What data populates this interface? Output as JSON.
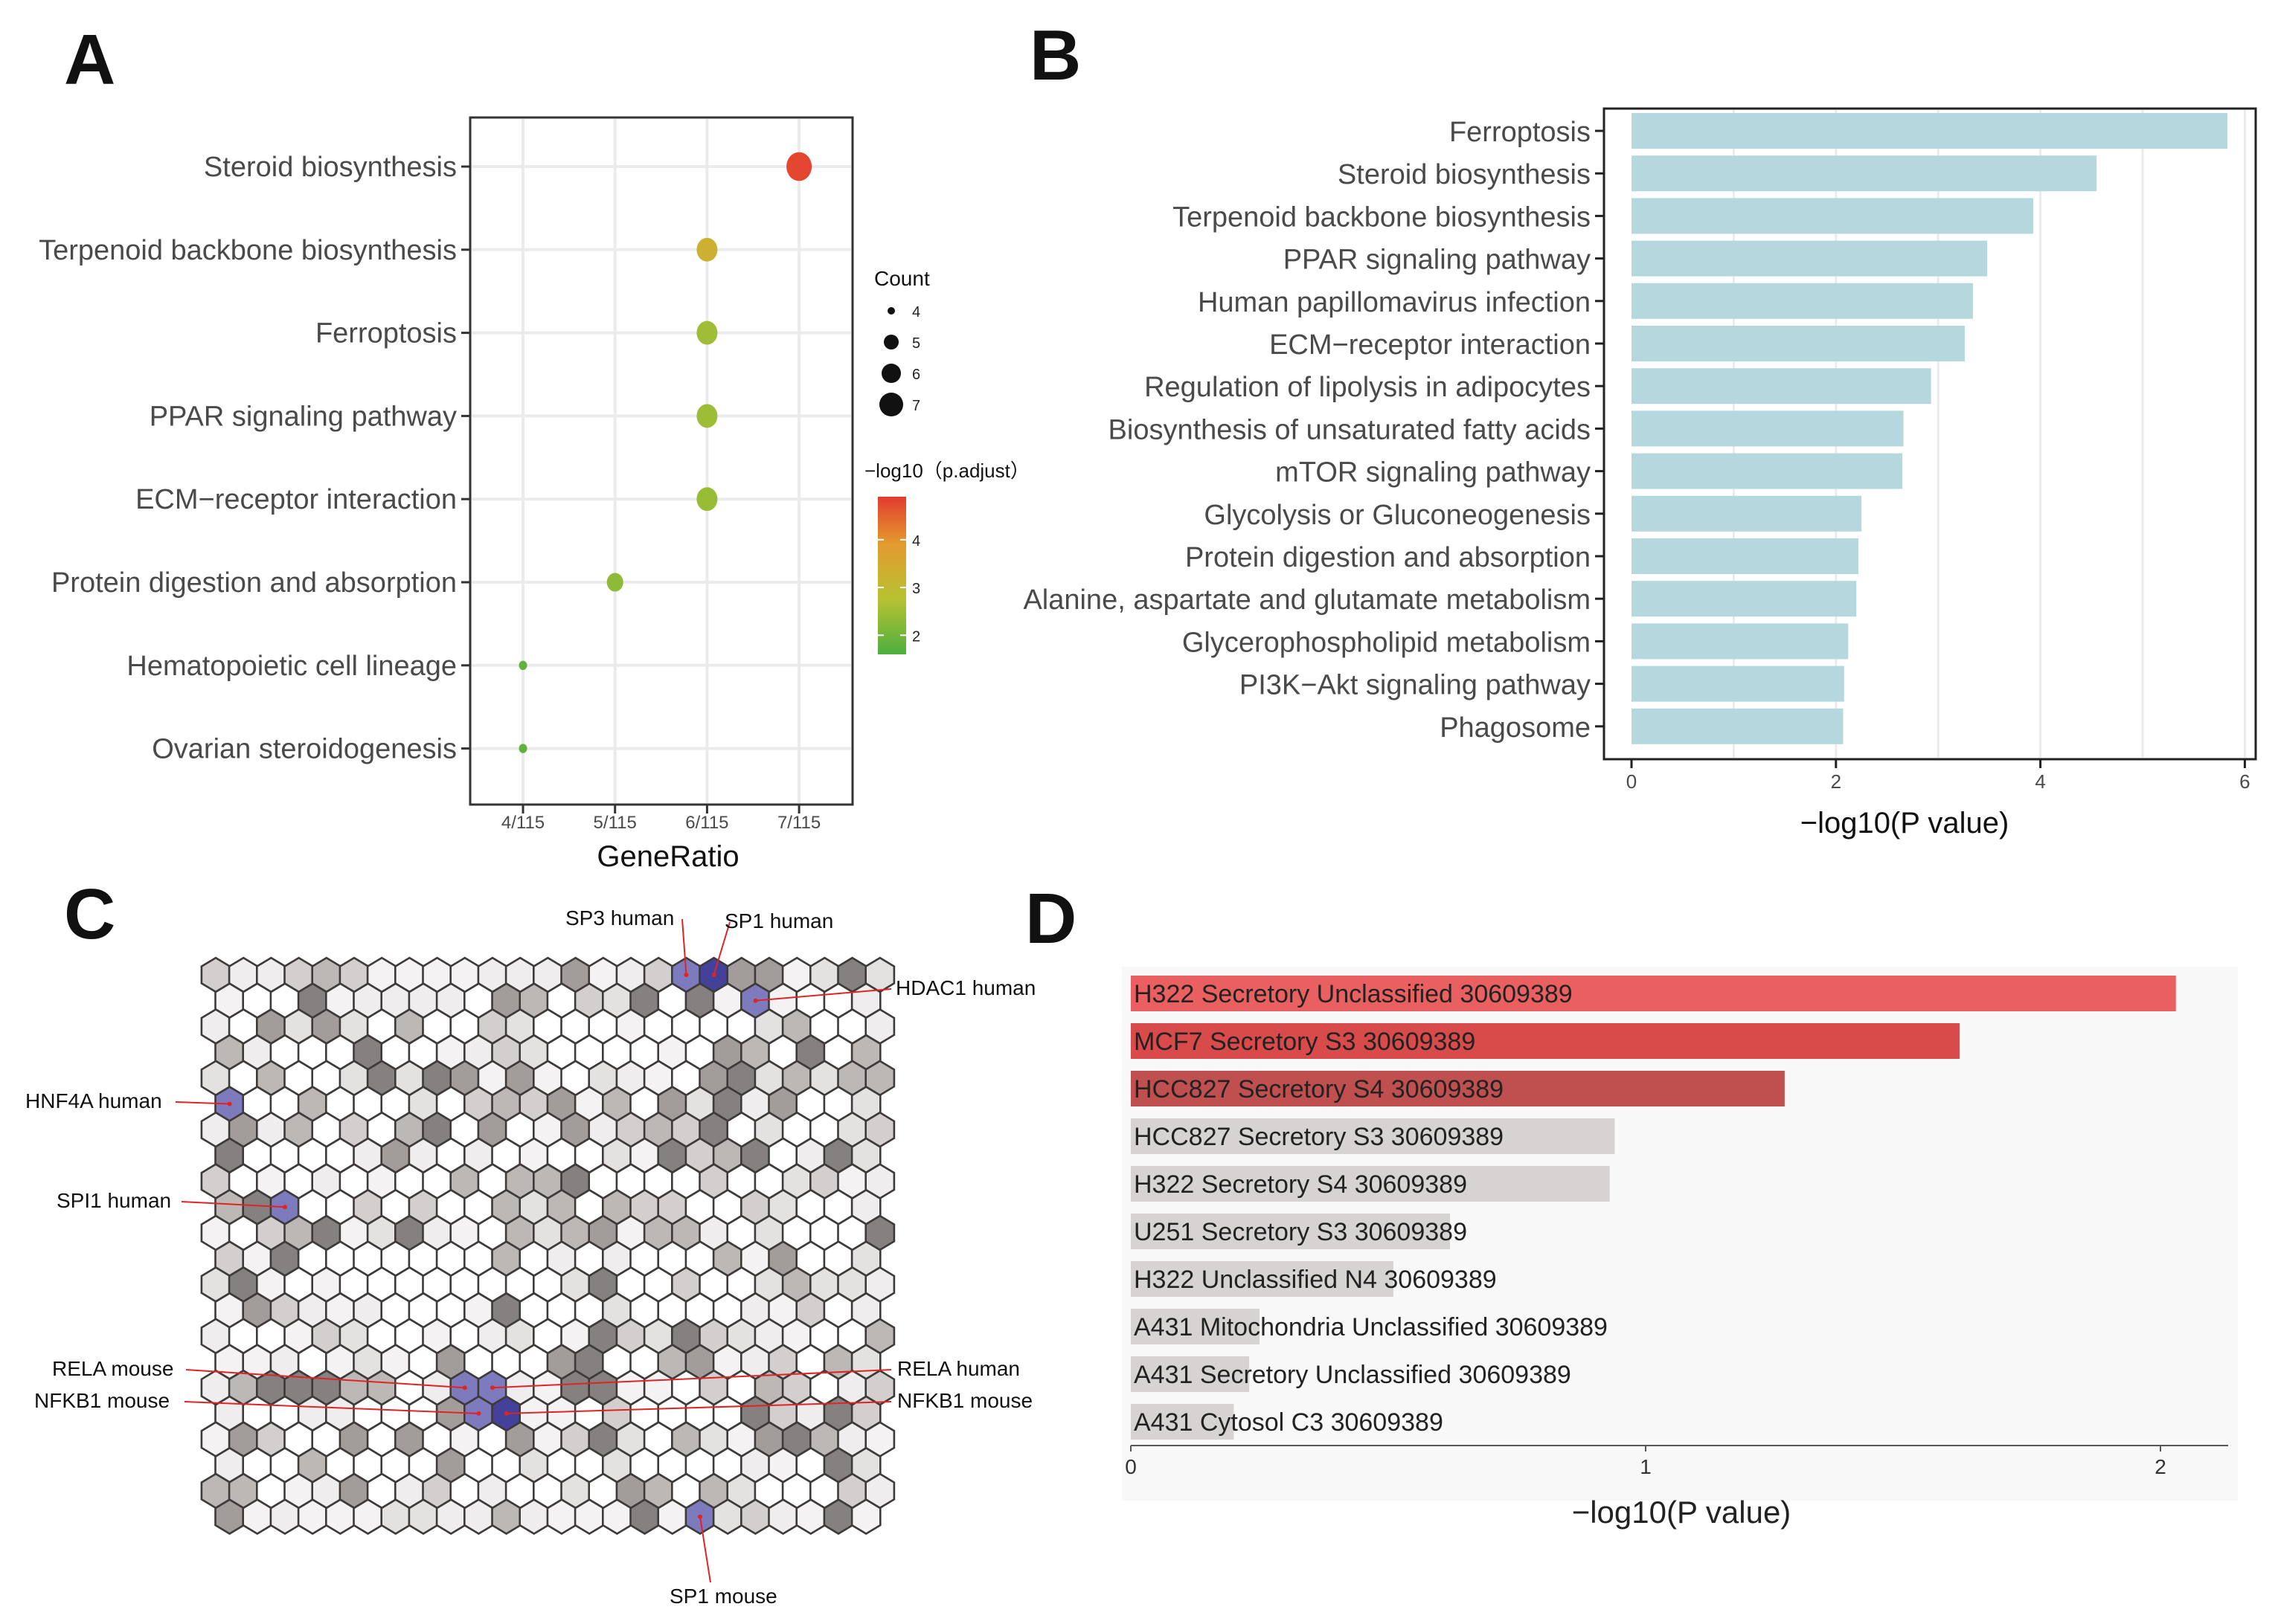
{
  "colors": {
    "bar_b": "#b5d8df",
    "grid": "#ebebeb",
    "axis": "#333333",
    "hex_blue": "#7d7bbd",
    "hex_blue_dark": "#43419a",
    "d_red1": "#ea6060",
    "d_red2": "#d94a4a",
    "d_red3": "#c04f4f",
    "d_gray": "#d7d3d2",
    "arrow": "#e02424"
  },
  "panel_labels": [
    "A",
    "B",
    "C",
    "D"
  ],
  "chart_data": [
    {
      "panel": "A",
      "type": "scatter",
      "title": "",
      "xlabel": "GeneRatio",
      "x_ticks": [
        "4/115",
        "5/115",
        "6/115",
        "7/115"
      ],
      "x_tick_values": [
        4,
        5,
        6,
        7
      ],
      "categories": [
        "Steroid biosynthesis",
        "Terpenoid backbone biosynthesis",
        "Ferroptosis",
        "PPAR signaling pathway",
        "ECM−receptor interaction",
        "Protein digestion and absorption",
        "Hematopoietic cell lineage",
        "Ovarian steroidogenesis"
      ],
      "gene_ratio": [
        7,
        6,
        6,
        6,
        6,
        5,
        4,
        4
      ],
      "count": [
        7,
        6,
        6,
        6,
        6,
        5,
        4,
        4
      ],
      "neg_log10_p_adjust": [
        4.8,
        3.3,
        2.5,
        2.45,
        2.4,
        2.3,
        1.8,
        1.8
      ],
      "size_legend": {
        "title": "Count",
        "values": [
          4,
          5,
          6,
          7
        ]
      },
      "color_legend": {
        "title": "−log10（p.adjust）",
        "ticks": [
          2,
          3,
          4
        ],
        "range": [
          1.6,
          4.9
        ],
        "colors": [
          "#4daf3f",
          "#b8c232",
          "#e39b2f",
          "#e33b2e"
        ]
      }
    },
    {
      "panel": "B",
      "type": "bar",
      "orientation": "horizontal",
      "xlabel": "−log10(P value)",
      "xlim": [
        0,
        6
      ],
      "x_ticks": [
        0,
        2,
        4,
        6
      ],
      "categories": [
        "Ferroptosis",
        "Steroid biosynthesis",
        "Terpenoid backbone biosynthesis",
        "PPAR signaling pathway",
        "Human papillomavirus infection",
        "ECM−receptor interaction",
        "Regulation of lipolysis in adipocytes",
        "Biosynthesis of unsaturated fatty acids",
        "mTOR signaling pathway",
        "Glycolysis or Gluconeogenesis",
        "Protein digestion and absorption",
        "Alanine, aspartate and glutamate metabolism",
        "Glycerophospholipid metabolism",
        "PI3K−Akt signaling pathway",
        "Phagosome"
      ],
      "values": [
        5.83,
        4.55,
        3.93,
        3.48,
        3.34,
        3.26,
        2.93,
        2.66,
        2.65,
        2.25,
        2.22,
        2.2,
        2.12,
        2.08,
        2.07
      ]
    },
    {
      "panel": "C",
      "type": "heatmap",
      "subtype": "hexagonal-tiling",
      "grid": {
        "cols": 25,
        "rows": 22
      },
      "highlighted": [
        {
          "label": "SP3  human",
          "col": 17,
          "row": 0,
          "shade": "blue"
        },
        {
          "label": "SP1  human",
          "col": 18,
          "row": 0,
          "shade": "dark-blue"
        },
        {
          "label": "HDAC1  human",
          "col": 19,
          "row": 1,
          "shade": "blue"
        },
        {
          "label": "HNF4A  human",
          "col": 0,
          "row": 5,
          "shade": "blue"
        },
        {
          "label": "SPI1  human",
          "col": 2,
          "row": 9,
          "shade": "blue"
        },
        {
          "label": "RELA  mouse",
          "col": 9,
          "row": 16,
          "shade": "blue"
        },
        {
          "label": "RELA  human",
          "col": 10,
          "row": 16,
          "shade": "blue"
        },
        {
          "label": "NFKB1  mouse",
          "col": 9,
          "row": 17,
          "shade": "blue",
          "side": "left"
        },
        {
          "label": "NFKB1  mouse",
          "col": 10,
          "row": 17,
          "shade": "dark-blue",
          "side": "right"
        },
        {
          "label": "SP1  mouse",
          "col": 17,
          "row": 21,
          "shade": "blue"
        }
      ]
    },
    {
      "panel": "D",
      "type": "bar",
      "orientation": "horizontal",
      "xlabel": "−log10(P value)",
      "xlim": [
        0,
        2.15
      ],
      "x_ticks": [
        0,
        1,
        2
      ],
      "categories": [
        "H322 Secretory Unclassified 30609389",
        "MCF7 Secretory S3 30609389",
        "HCC827 Secretory S4 30609389",
        "HCC827 Secretory S3 30609389",
        "H322 Secretory S4 30609389",
        "U251 Secretory S3 30609389",
        "H322 Unclassified N4 30609389",
        "A431 Mitochondria Unclassified 30609389",
        "A431 Secretory Unclassified 30609389",
        "A431 Cytosol C3 30609389"
      ],
      "values": [
        2.03,
        1.61,
        1.27,
        0.94,
        0.93,
        0.62,
        0.51,
        0.25,
        0.23,
        0.2
      ],
      "bar_colors": [
        "#ea6060",
        "#d94a4a",
        "#c04f4f",
        "#d7d3d2",
        "#d7d3d2",
        "#d7d3d2",
        "#d7d3d2",
        "#d7d3d2",
        "#d7d3d2",
        "#d7d3d2"
      ]
    }
  ]
}
